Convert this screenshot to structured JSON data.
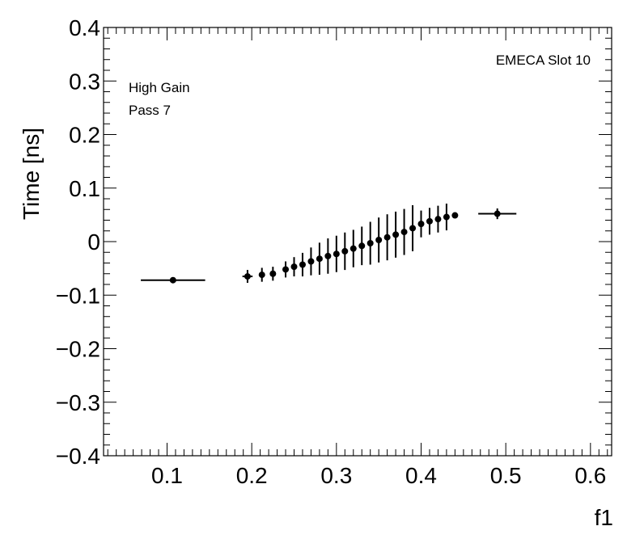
{
  "chart_data": {
    "type": "scatter",
    "title": "",
    "xlabel": "f1",
    "ylabel": "Time [ns]",
    "xlim": [
      0.025,
      0.625
    ],
    "ylim": [
      -0.4,
      0.4
    ],
    "x_ticks": [
      "0.1",
      "0.2",
      "0.3",
      "0.4",
      "0.5",
      "0.6"
    ],
    "y_ticks": [
      "−0.4",
      "−0.3",
      "−0.2",
      "−0.1",
      "0",
      "0.1",
      "0.2",
      "0.3",
      "0.4"
    ],
    "grid": false,
    "legend": "none",
    "annotations": {
      "top_right": "EMECA Slot 10",
      "line1": "High Gain",
      "line2": "Pass 7"
    },
    "marker_color": "#000000",
    "series": [
      {
        "x": [
          0.107,
          0.195,
          0.212,
          0.225,
          0.24,
          0.25,
          0.26,
          0.27,
          0.28,
          0.29,
          0.3,
          0.31,
          0.32,
          0.33,
          0.34,
          0.35,
          0.36,
          0.37,
          0.38,
          0.39,
          0.4,
          0.41,
          0.42,
          0.43,
          0.44,
          0.49
        ],
        "y": [
          -0.072,
          -0.065,
          -0.062,
          -0.06,
          -0.052,
          -0.047,
          -0.043,
          -0.037,
          -0.032,
          -0.027,
          -0.023,
          -0.018,
          -0.013,
          -0.008,
          -0.003,
          0.003,
          0.008,
          0.013,
          0.018,
          0.025,
          0.033,
          0.038,
          0.042,
          0.046,
          0.049,
          0.052
        ],
        "yerr": [
          0.005,
          0.012,
          0.013,
          0.013,
          0.015,
          0.018,
          0.022,
          0.026,
          0.03,
          0.033,
          0.034,
          0.035,
          0.035,
          0.036,
          0.04,
          0.042,
          0.043,
          0.043,
          0.043,
          0.043,
          0.025,
          0.025,
          0.025,
          0.025,
          0.005,
          0.01
        ],
        "xwidth": [
          0.076,
          0.012,
          0.006,
          0.006,
          0.005,
          0.005,
          0.005,
          0.005,
          0.005,
          0.005,
          0.005,
          0.005,
          0.005,
          0.005,
          0.005,
          0.005,
          0.005,
          0.005,
          0.005,
          0.005,
          0.005,
          0.005,
          0.005,
          0.005,
          0.003,
          0.045
        ]
      }
    ]
  }
}
